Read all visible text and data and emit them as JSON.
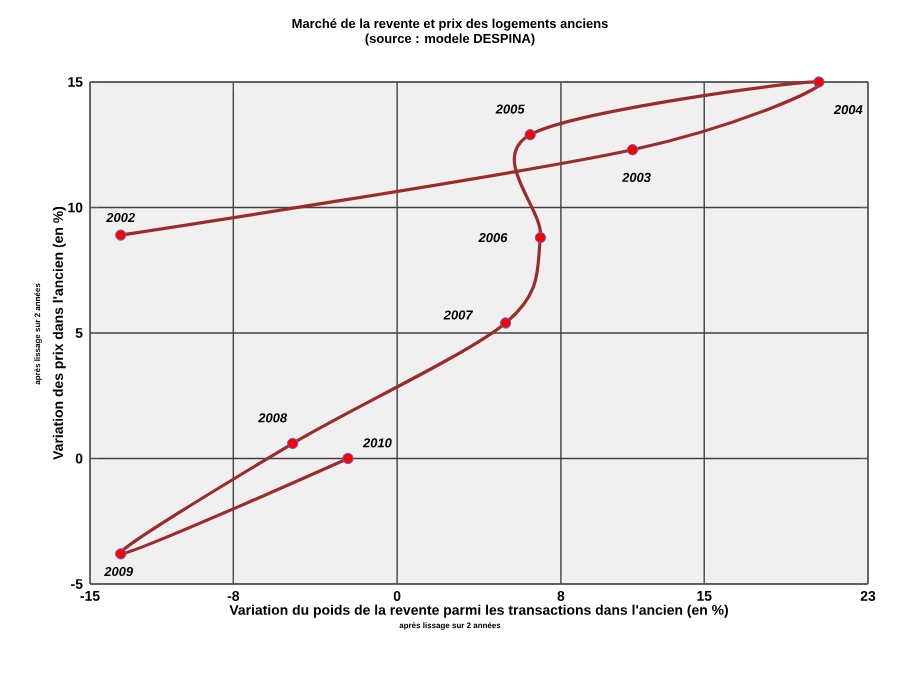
{
  "chart_data": {
    "type": "line",
    "title": "Marché de la revente et prix des logements anciens",
    "subtitle": "(source : modele DESPINA)",
    "xlabel": "Variation du poids de la revente parmi les transactions dans l'ancien (en %)",
    "ylabel": "Variation des prix dans l'ancien (en %)",
    "series": [
      {
        "color": "#9b2c2c",
        "x": [
          -13.5,
          11.5,
          20.6,
          6.5,
          7.0,
          5.3,
          -5.1,
          -13.5,
          -2.4
        ],
        "values": [
          8.9,
          12.3,
          15.0,
          12.9,
          8.8,
          5.4,
          0.6,
          -3.8,
          0.0
        ]
      }
    ],
    "annotations": [
      {
        "text": "2002",
        "x": -13.5,
        "y": 8.9
      },
      {
        "text": "2003",
        "x": 11.5,
        "y": 12.3
      },
      {
        "text": "2004",
        "x": 20.6,
        "y": 15.0
      },
      {
        "text": "2005",
        "x": 6.5,
        "y": 12.9
      },
      {
        "text": "2006",
        "x": 7.0,
        "y": 8.8
      },
      {
        "text": "2007",
        "x": 5.3,
        "y": 5.4
      },
      {
        "text": "2008",
        "x": -5.1,
        "y": 0.6
      },
      {
        "text": "2009",
        "x": -13.5,
        "y": -3.8
      },
      {
        "text": "2010",
        "x": -2.4,
        "y": 0.0
      },
      "après lissage sur 2 années",
      "après lissage sur 2 années"
    ],
    "xlim": [
      -15,
      23
    ],
    "ylim": [
      -5,
      15
    ],
    "xticks": [
      -15,
      -8,
      0,
      8,
      15,
      23
    ],
    "yticks": [
      -5,
      0,
      5,
      10,
      15
    ],
    "grid": true,
    "marker": "circle",
    "line_style": "solid"
  }
}
